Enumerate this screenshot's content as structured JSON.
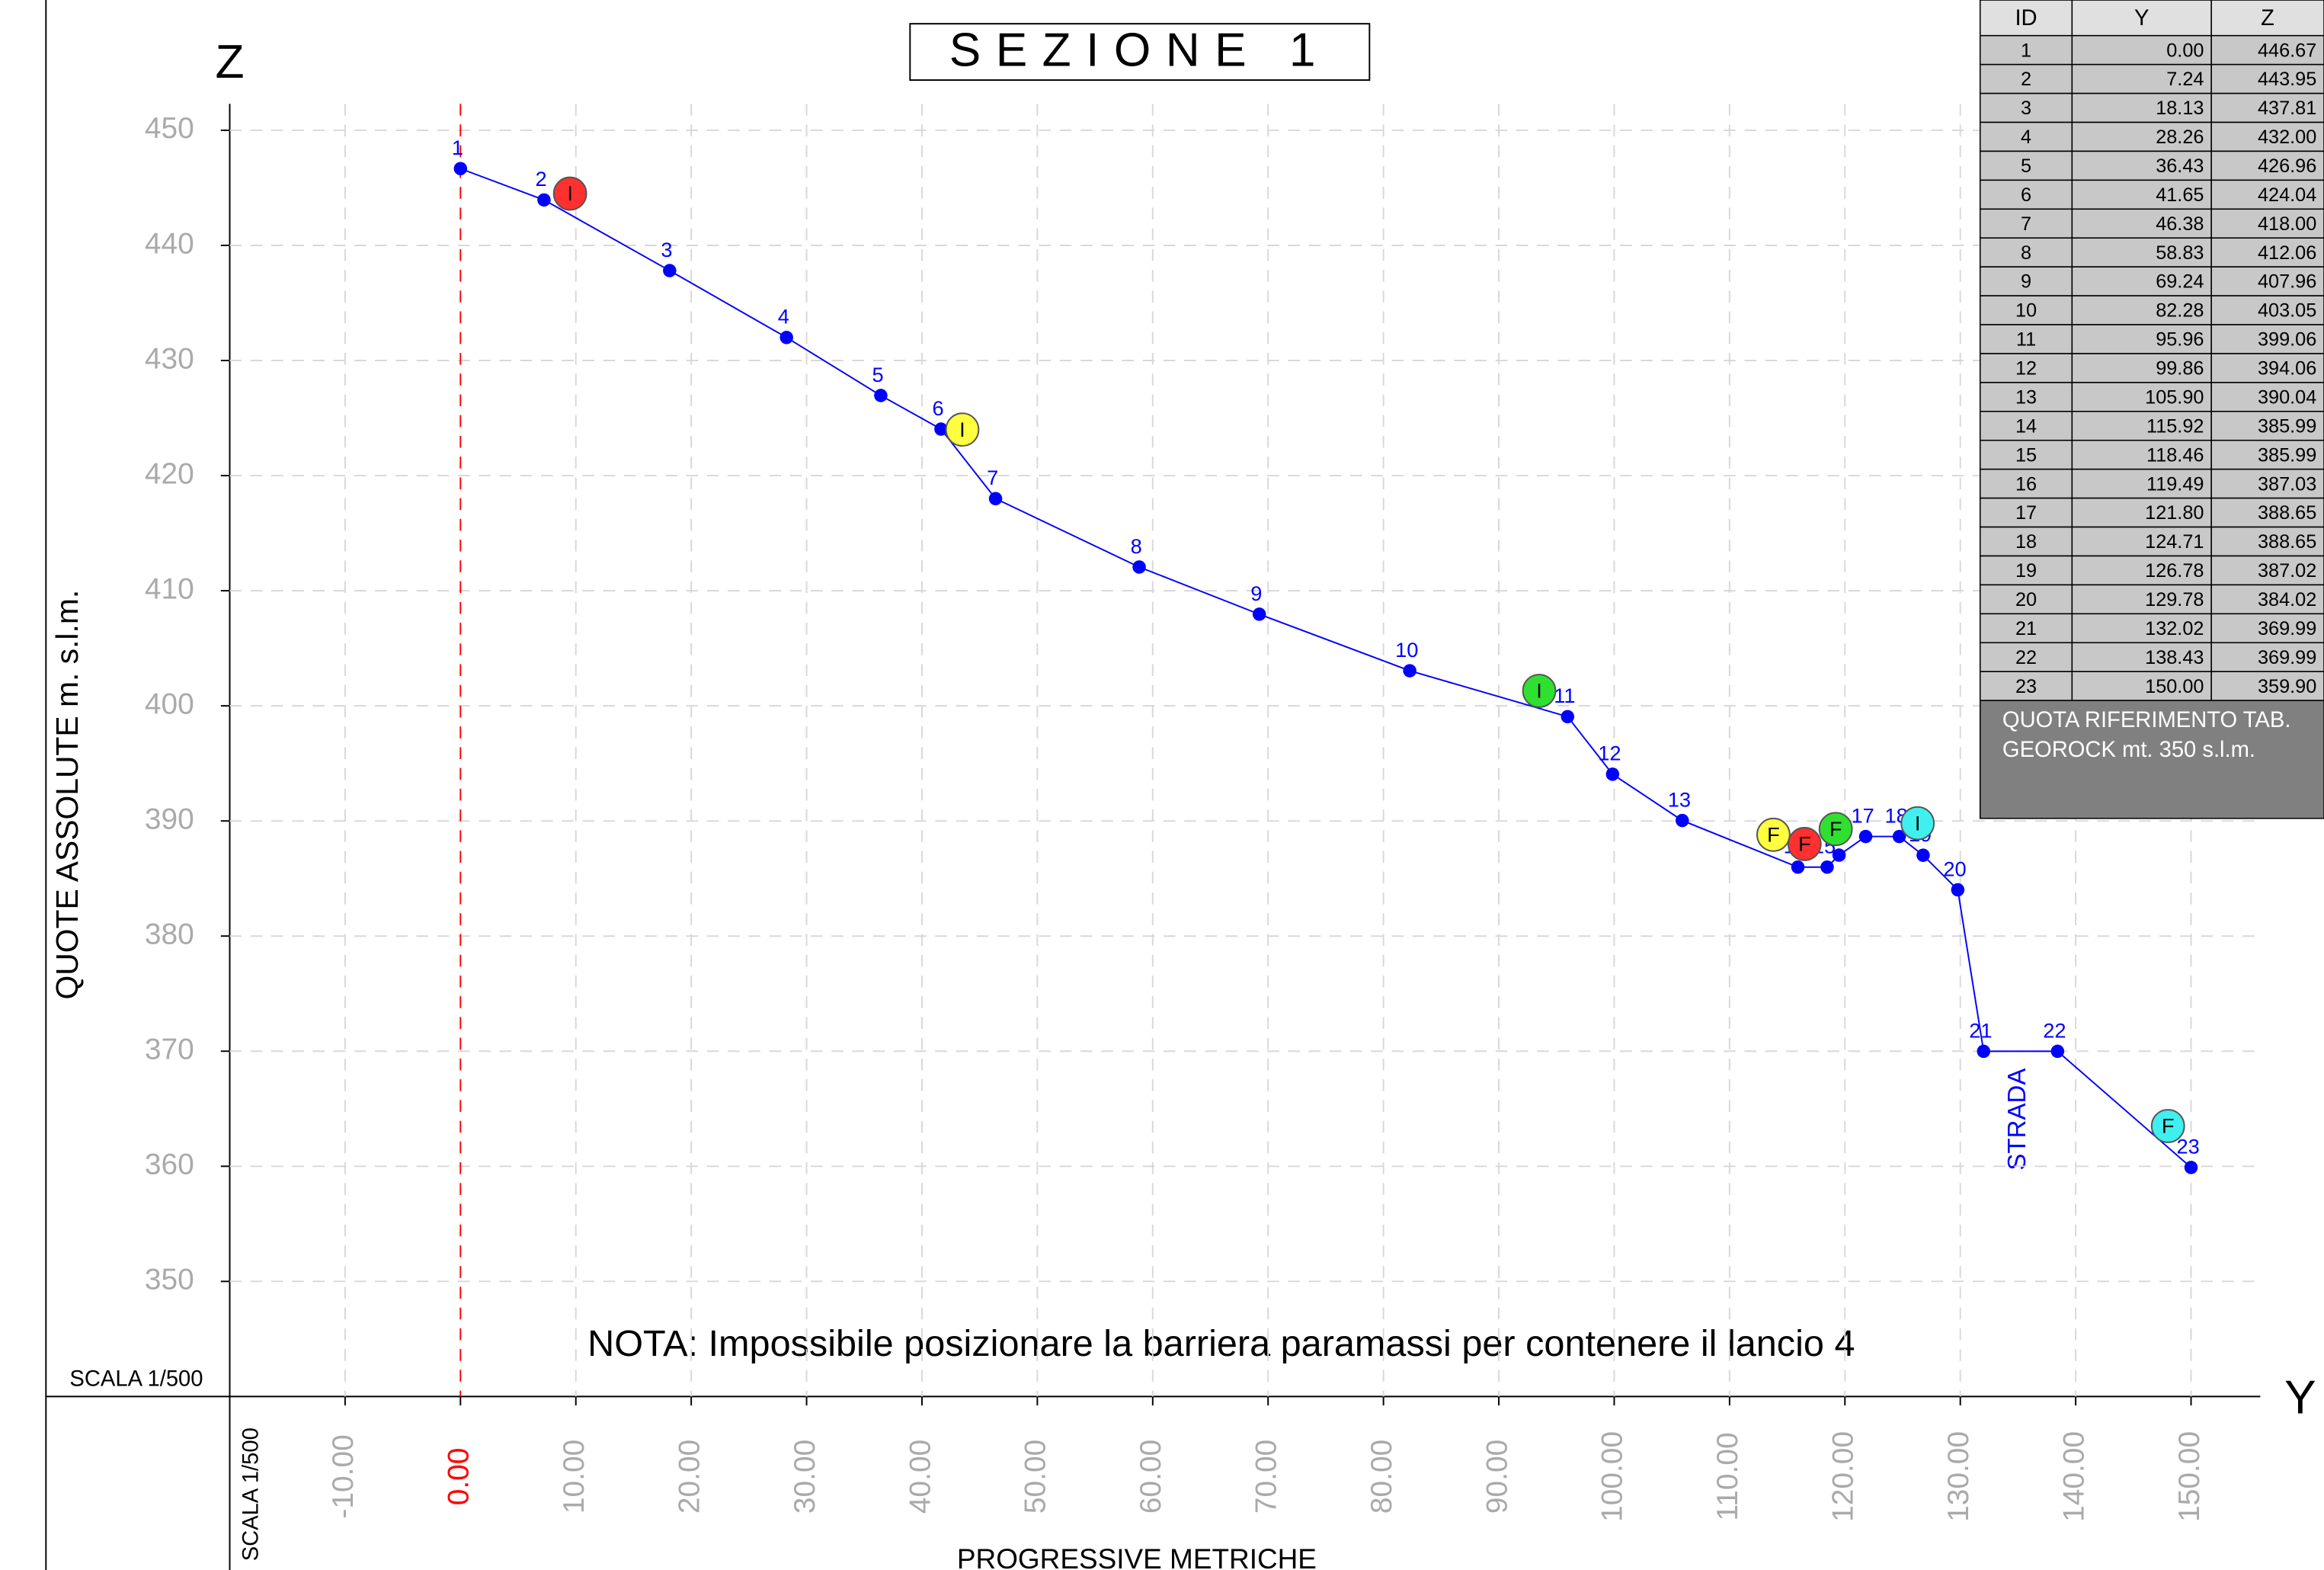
{
  "chart_data": {
    "type": "line",
    "title": "SEZIONE 1",
    "y_axis_name": "Z",
    "x_axis_name": "Y",
    "y_axis_label": "QUOTE ASSOLUTE m. s.l.m.",
    "x_axis_label": "PROGRESSIVE METRICHE",
    "scale_label": "SCALA 1/500",
    "note": "NOTA: Impossibile posizionare la barriera paramassi per contenere il lancio 4",
    "annotation": "STRADA",
    "x": [
      0,
      7.24,
      18.13,
      28.26,
      36.43,
      41.65,
      46.38,
      58.83,
      69.24,
      82.28,
      95.96,
      99.86,
      105.9,
      115.92,
      118.46,
      119.49,
      121.8,
      124.71,
      126.78,
      129.78,
      132.02,
      138.43,
      150
    ],
    "x_labels": [
      "0.00",
      "7.24",
      "18.13",
      "28.26",
      "36.43",
      "41.65",
      "46.38",
      "58.83",
      "69.24",
      "82.28",
      "95.96",
      "99.86",
      "105.90",
      "115.92",
      "118.46",
      "119.49",
      "121.80",
      "124.71",
      "126.78",
      "129.78",
      "132.02",
      "138.43",
      "150.00"
    ],
    "point_labels": [
      "1",
      "2",
      "3",
      "4",
      "5",
      "6",
      "7",
      "8",
      "9",
      "10",
      "11",
      "12",
      "13",
      "14",
      "15",
      "16",
      "17",
      "18",
      "19",
      "20",
      "21",
      "22",
      "23"
    ],
    "series": [
      {
        "color": "#0000ff",
        "values": [
          446.67,
          443.95,
          437.81,
          432,
          426.96,
          424.04,
          418,
          412.06,
          407.96,
          403.05,
          399.06,
          394.06,
          390.04,
          385.99,
          385.99,
          387.03,
          388.65,
          388.65,
          387.02,
          384.02,
          369.99,
          369.99,
          359.9
        ],
        "value_labels": [
          "446.67",
          "443.95",
          "437.81",
          "432.00",
          "426.96",
          "424.04",
          "418.00",
          "412.06",
          "407.96",
          "403.05",
          "399.06",
          "394.06",
          "390.04",
          "385.99",
          "385.99",
          "387.03",
          "388.65",
          "388.65",
          "387.02",
          "384.02",
          "369.99",
          "369.99",
          "359.90"
        ]
      }
    ],
    "xlim": [
      -20,
      156
    ],
    "ylim": [
      340,
      452.3
    ],
    "xticks": [
      {
        "value": -10,
        "label": "-10.00"
      },
      {
        "value": 0,
        "label": "0.00"
      },
      {
        "value": 10,
        "label": "10.00"
      },
      {
        "value": 20,
        "label": "20.00"
      },
      {
        "value": 30,
        "label": "30.00"
      },
      {
        "value": 40,
        "label": "40.00"
      },
      {
        "value": 50,
        "label": "50.00"
      },
      {
        "value": 60,
        "label": "60.00"
      },
      {
        "value": 70,
        "label": "70.00"
      },
      {
        "value": 80,
        "label": "80.00"
      },
      {
        "value": 90,
        "label": "90.00"
      },
      {
        "value": 100,
        "label": "100.00"
      },
      {
        "value": 110,
        "label": "110.00"
      },
      {
        "value": 120,
        "label": "120.00"
      },
      {
        "value": 130,
        "label": "130.00"
      },
      {
        "value": 140,
        "label": "140.00"
      },
      {
        "value": 150,
        "label": "150.00"
      }
    ],
    "yticks": [
      350,
      360,
      370,
      380,
      390,
      400,
      410,
      420,
      430,
      440,
      450
    ],
    "grid": true,
    "reference_x": 0,
    "reference_color": "#ff0000",
    "markers": [
      {
        "label": "I",
        "color": "#ff3030",
        "x": 9.5,
        "y": 444.5
      },
      {
        "label": "I",
        "color": "#ffff40",
        "x": 43.5,
        "y": 424
      },
      {
        "label": "I",
        "color": "#30e030",
        "x": 93.5,
        "y": 401.3
      },
      {
        "label": "F",
        "color": "#ffff40",
        "x": 113.8,
        "y": 388.8
      },
      {
        "label": "F",
        "color": "#ff3030",
        "x": 116.5,
        "y": 388
      },
      {
        "label": "F",
        "color": "#30e030",
        "x": 119.2,
        "y": 389.3
      },
      {
        "label": "I",
        "color": "#40f0f0",
        "x": 126.3,
        "y": 389.8
      },
      {
        "label": "F",
        "color": "#40f0f0",
        "x": 148,
        "y": 363.5
      }
    ],
    "table": {
      "headers": [
        "ID",
        "Y",
        "Z"
      ],
      "footnote": [
        "QUOTA RIFERIMENTO TAB.",
        "GEOROCK mt. 350 s.l.m."
      ]
    }
  }
}
